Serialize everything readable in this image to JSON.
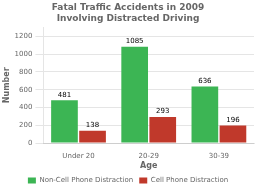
{
  "chart_data": {
    "type": "bar",
    "title": "Fatal Traffic Accidents in 2009\nInvolving Distracted Driving",
    "categories": [
      "Under 20",
      "20-29",
      "30-39"
    ],
    "series": [
      {
        "name": "Non-Cell Phone Distraction",
        "color": "#3cb554",
        "values": [
          481,
          1085,
          636
        ]
      },
      {
        "name": "Cell Phone Distraction",
        "color": "#c0392b",
        "values": [
          138,
          293,
          196
        ]
      }
    ],
    "xlabel": "Age",
    "ylabel": "Number",
    "ylim": [
      0,
      1300
    ],
    "yticks": [
      0,
      200,
      400,
      600,
      800,
      1000,
      1200
    ],
    "grid": true,
    "legend": "bottom",
    "data_labels": true
  }
}
